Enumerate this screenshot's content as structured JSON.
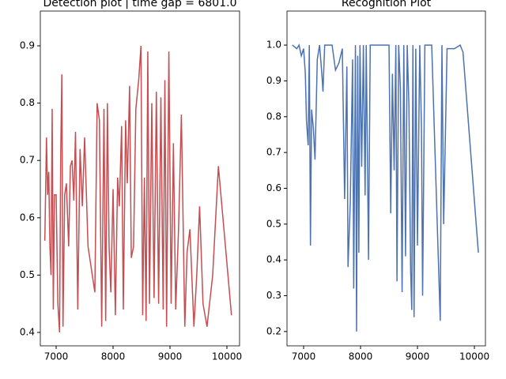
{
  "chart_data": [
    {
      "type": "line",
      "title": "Detection plot | time gap = 6801.0",
      "color": "#c44e52",
      "x": [
        6801,
        6830,
        6850,
        6870,
        6890,
        6910,
        6930,
        6950,
        6970,
        7000,
        7030,
        7060,
        7080,
        7100,
        7120,
        7150,
        7180,
        7220,
        7250,
        7280,
        7310,
        7340,
        7380,
        7420,
        7460,
        7500,
        7560,
        7680,
        7720,
        7760,
        7800,
        7840,
        7870,
        7900,
        7930,
        7960,
        8000,
        8040,
        8080,
        8110,
        8150,
        8180,
        8220,
        8250,
        8290,
        8320,
        8360,
        8400,
        8450,
        8490,
        8520,
        8550,
        8580,
        8610,
        8640,
        8680,
        8720,
        8760,
        8800,
        8840,
        8880,
        8910,
        8940,
        8980,
        9020,
        9060,
        9100,
        9150,
        9200,
        9260,
        9300,
        9350,
        9420,
        9470,
        9520,
        9580,
        9650,
        9750,
        9850,
        10080
      ],
      "values": [
        0.56,
        0.74,
        0.64,
        0.68,
        0.55,
        0.5,
        0.79,
        0.44,
        0.64,
        0.64,
        0.45,
        0.4,
        0.71,
        0.85,
        0.41,
        0.64,
        0.66,
        0.55,
        0.69,
        0.7,
        0.63,
        0.75,
        0.44,
        0.72,
        0.62,
        0.74,
        0.55,
        0.47,
        0.8,
        0.77,
        0.41,
        0.79,
        0.42,
        0.8,
        0.55,
        0.47,
        0.65,
        0.43,
        0.67,
        0.62,
        0.76,
        0.44,
        0.77,
        0.66,
        0.83,
        0.53,
        0.55,
        0.79,
        0.84,
        0.9,
        0.43,
        0.67,
        0.42,
        0.89,
        0.45,
        0.8,
        0.46,
        0.82,
        0.45,
        0.81,
        0.44,
        0.84,
        0.41,
        0.89,
        0.45,
        0.73,
        0.44,
        0.58,
        0.78,
        0.41,
        0.54,
        0.58,
        0.41,
        0.5,
        0.62,
        0.45,
        0.41,
        0.5,
        0.69,
        0.43
      ],
      "xlim": [
        6722,
        10222
      ],
      "ylim": [
        0.3766,
        0.9606
      ],
      "xticks": [
        7000,
        8000,
        9000,
        10000
      ],
      "yticks": [
        0.4,
        0.5,
        0.6,
        0.7,
        0.8,
        0.9
      ]
    },
    {
      "type": "line",
      "title": "Recognition Plot",
      "color": "#4c72b0",
      "x": [
        6801,
        6880,
        6920,
        6960,
        7000,
        7030,
        7050,
        7080,
        7100,
        7120,
        7140,
        7170,
        7200,
        7240,
        7280,
        7320,
        7340,
        7370,
        7500,
        7560,
        7620,
        7680,
        7720,
        7760,
        7780,
        7820,
        7860,
        7880,
        7910,
        7930,
        7950,
        7970,
        7990,
        8020,
        8050,
        8080,
        8100,
        8140,
        8170,
        8500,
        8530,
        8560,
        8590,
        8620,
        8640,
        8670,
        8700,
        8730,
        8760,
        8790,
        8820,
        8850,
        8880,
        8900,
        8920,
        8940,
        8970,
        9000,
        9040,
        9070,
        9090,
        9130,
        9250,
        9400,
        9430,
        9460,
        9520,
        9650,
        9750,
        9800,
        10070
      ],
      "values": [
        1.0,
        0.99,
        1.0,
        0.97,
        0.99,
        0.92,
        0.79,
        0.72,
        1.0,
        0.44,
        0.82,
        0.77,
        0.68,
        0.96,
        1.0,
        0.92,
        0.87,
        1.0,
        1.0,
        0.93,
        0.95,
        0.99,
        0.57,
        0.94,
        0.38,
        0.56,
        0.96,
        0.32,
        1.0,
        0.2,
        0.97,
        0.42,
        1.0,
        0.66,
        1.0,
        0.58,
        1.0,
        0.4,
        1.0,
        1.0,
        0.53,
        0.92,
        0.65,
        1.0,
        0.34,
        1.0,
        0.88,
        0.31,
        1.0,
        0.41,
        1.0,
        0.83,
        0.37,
        0.26,
        1.0,
        0.24,
        0.99,
        0.44,
        1.0,
        0.77,
        0.3,
        1.0,
        1.0,
        0.23,
        1.0,
        0.5,
        0.99,
        0.99,
        1.0,
        0.98,
        0.42
      ],
      "xlim": [
        6708,
        10194
      ],
      "ylim": [
        0.16,
        1.095
      ],
      "xticks": [
        7000,
        8000,
        9000,
        10000
      ],
      "yticks": [
        0.2,
        0.3,
        0.4,
        0.5,
        0.6,
        0.7,
        0.8,
        0.9,
        {
          "value": 1.0,
          "label": "1.0"
        }
      ]
    }
  ]
}
